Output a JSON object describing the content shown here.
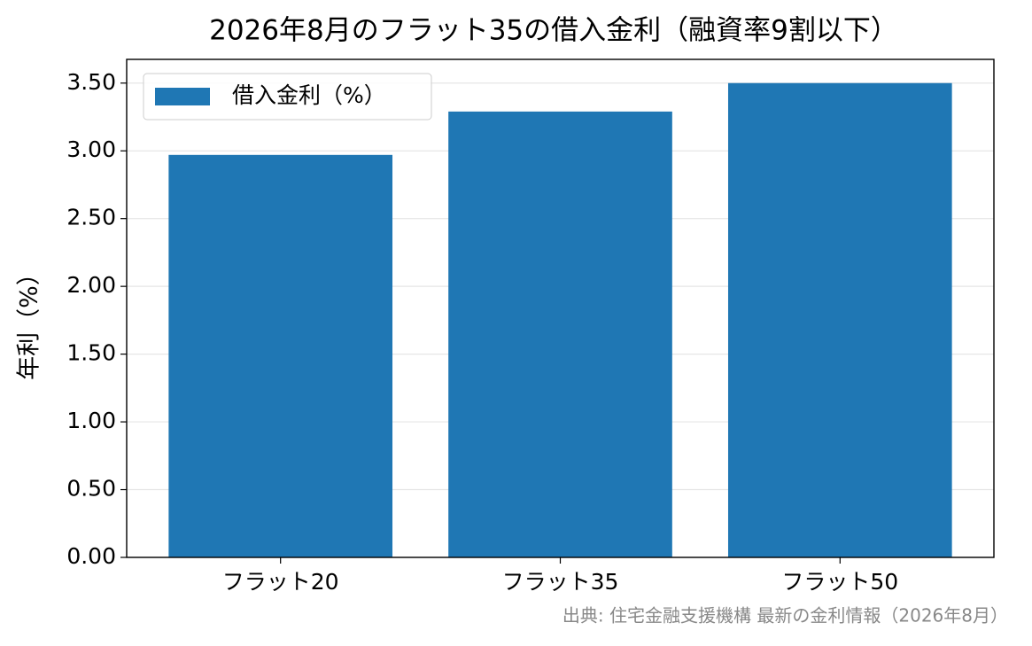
{
  "chart_data": {
    "type": "bar",
    "title": "2026年8月のフラット35の借入金利（融資率9割以下）",
    "y_label": "年利（%）",
    "source": "出典: 住宅金融支援機構 最新の金利情報（2026年8月）",
    "categories": [
      "フラット20",
      "フラット35",
      "フラット50"
    ],
    "series": [
      {
        "name": "借入金利（%）",
        "color": "#1f77b4",
        "values": [
          2.97,
          3.29,
          3.5
        ]
      }
    ],
    "ylim": [
      0,
      3.675
    ],
    "yticks": [
      {
        "value": 0,
        "label": "0.00"
      },
      {
        "value": 0.5,
        "label": "0.50"
      },
      {
        "value": 1,
        "label": "1.00"
      },
      {
        "value": 1.5,
        "label": "1.50"
      },
      {
        "value": 2,
        "label": "2.00"
      },
      {
        "value": 2.5,
        "label": "2.50"
      },
      {
        "value": 3,
        "label": "3.00"
      },
      {
        "value": 3.5,
        "label": "3.50"
      }
    ],
    "grid": true,
    "legend": "upper-left"
  }
}
